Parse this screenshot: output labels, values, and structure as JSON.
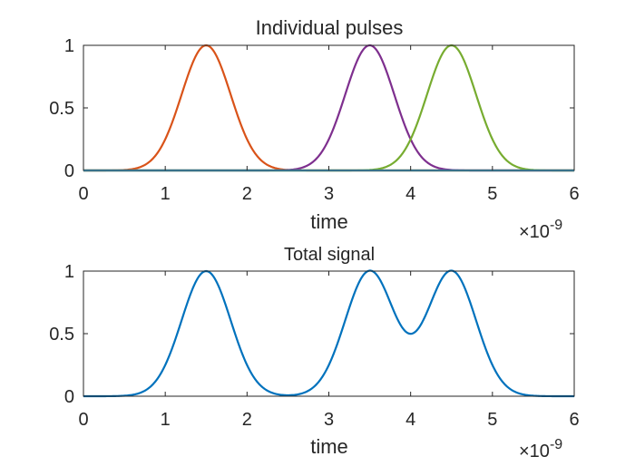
{
  "chart_data": [
    {
      "type": "line",
      "title": "Individual pulses",
      "xlabel": "time",
      "ylabel": "",
      "x_exponent_label": "×10",
      "x_exponent_power": "-9",
      "xlim": [
        0,
        6
      ],
      "ylim": [
        0,
        1
      ],
      "xticks": [
        0,
        1,
        2,
        3,
        4,
        5,
        6
      ],
      "xtick_labels": [
        "0",
        "1",
        "2",
        "3",
        "4",
        "5",
        "6"
      ],
      "yticks": [
        0,
        0.5,
        1
      ],
      "ytick_labels": [
        "0",
        "0.5",
        "1"
      ],
      "grid": false,
      "legend": "none",
      "x_units_scale": 1e-09,
      "series": [
        {
          "color": "#0072BD",
          "center": null,
          "values_x": [
            0,
            6
          ],
          "values_y": [
            0,
            0
          ]
        },
        {
          "color": "#D95319",
          "center": 1.5,
          "sigma": 0.3
        },
        {
          "color": "#EDB120",
          "center": null,
          "values_x": [
            0,
            6
          ],
          "values_y": [
            0,
            0
          ]
        },
        {
          "color": "#7E2F8E",
          "center": 3.5,
          "sigma": 0.3
        },
        {
          "color": "#77AC30",
          "center": 4.5,
          "sigma": 0.3
        },
        {
          "color": "#4DBEEE",
          "center": null,
          "values_x": [
            0,
            6
          ],
          "values_y": [
            0,
            0
          ]
        }
      ]
    },
    {
      "type": "line",
      "title": "Total signal",
      "xlabel": "time",
      "ylabel": "",
      "x_exponent_label": "×10",
      "x_exponent_power": "-9",
      "xlim": [
        0,
        6
      ],
      "ylim": [
        0,
        1
      ],
      "xticks": [
        0,
        1,
        2,
        3,
        4,
        5,
        6
      ],
      "xtick_labels": [
        "0",
        "1",
        "2",
        "3",
        "4",
        "5",
        "6"
      ],
      "yticks": [
        0,
        0.5,
        1
      ],
      "ytick_labels": [
        "0",
        "0.5",
        "1"
      ],
      "grid": false,
      "legend": "none",
      "x_units_scale": 1e-09,
      "series": [
        {
          "color": "#0072BD",
          "sum_of_centers": [
            1.5,
            3.5,
            4.5
          ],
          "sigma": 0.3
        }
      ]
    }
  ]
}
